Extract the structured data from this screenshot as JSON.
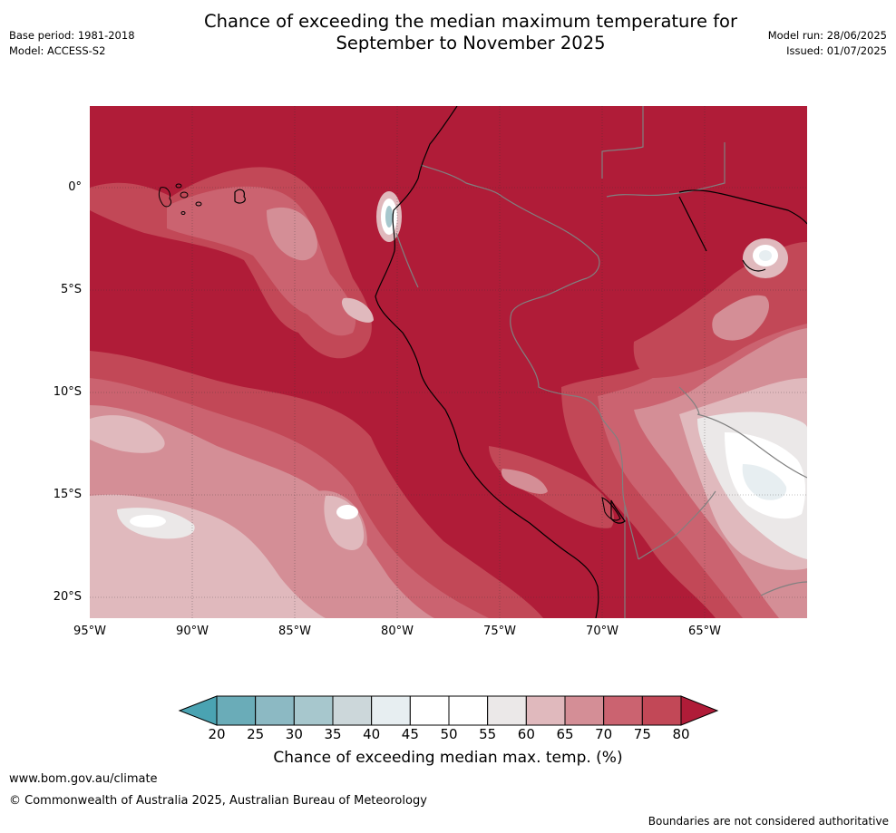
{
  "header": {
    "title_line1": "Chance of exceeding the median maximum temperature for",
    "title_line2": "September to November 2025",
    "base_period": "Base period: 1981-2018",
    "model": "Model: ACCESS-S2",
    "model_run": "Model run: 28/06/2025",
    "issued": "Issued: 01/07/2025"
  },
  "map": {
    "lat_labels": [
      "0°",
      "5°S",
      "10°S",
      "15°S",
      "20°S"
    ],
    "lon_labels": [
      "95°W",
      "90°W",
      "85°W",
      "80°W",
      "75°W",
      "70°W",
      "65°W"
    ],
    "dominant_category": "80",
    "colors": {
      "above_80": "#b01c38",
      "75_80": "#c24857",
      "70_75": "#cb6370",
      "65_70": "#d48e96",
      "60_65": "#e0b9bd",
      "55_60": "#ebe8e8",
      "50_55": "#ffffff",
      "45_50": "#ffffff",
      "40_45": "#e7eef1",
      "35_40": "#ccd7da",
      "30_35": "#a7c7cd",
      "25_30": "#8cb9c3",
      "20_25": "#6aacb8",
      "below_20": "#4aa3b2",
      "coast": "#000000",
      "border": "#808080",
      "grid": "#333333"
    }
  },
  "colorbar": {
    "ticks": [
      "20",
      "25",
      "30",
      "35",
      "40",
      "45",
      "50",
      "55",
      "60",
      "65",
      "70",
      "75",
      "80"
    ],
    "title": "Chance of exceeding median max. temp. (%)",
    "colors": [
      "#6aacb8",
      "#8cb9c3",
      "#a7c7cd",
      "#ccd7da",
      "#e7eef1",
      "#ffffff",
      "#ffffff",
      "#ebe8e8",
      "#e0b9bd",
      "#d48e96",
      "#cb6370",
      "#c24857"
    ],
    "low_color": "#4aa3b2",
    "high_color": "#b01c38"
  },
  "footer": {
    "url": "www.bom.gov.au/climate",
    "copyright": "© Commonwealth of Australia 2025, Australian Bureau of Meteorology",
    "disclaimer": "Boundaries are not considered authoritative"
  }
}
